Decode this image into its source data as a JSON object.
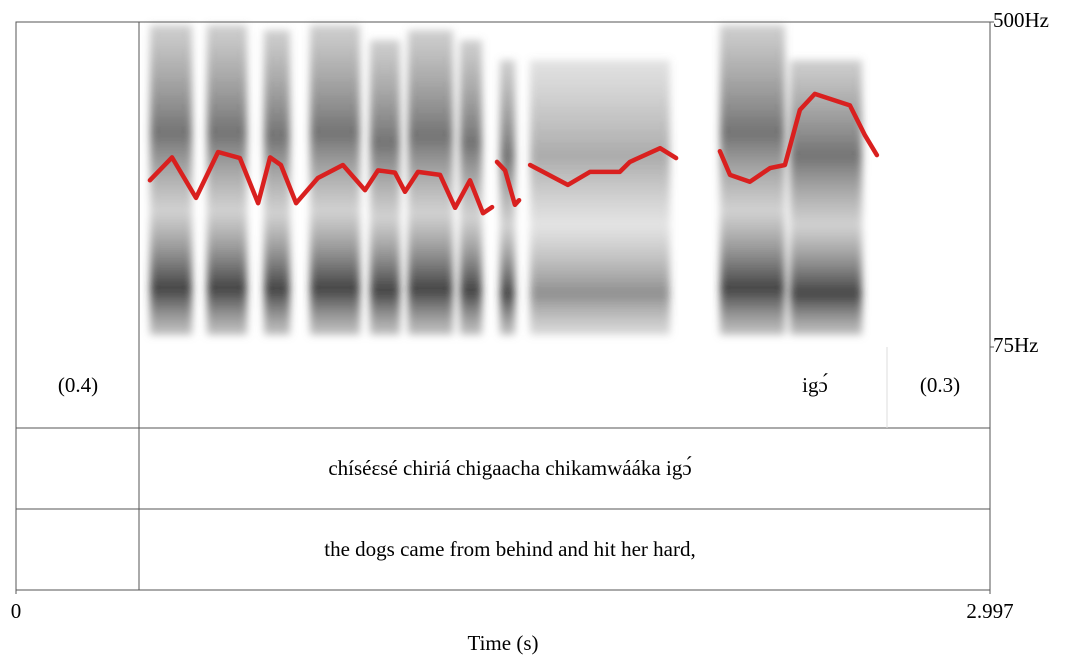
{
  "chart_data": {
    "type": "line",
    "x_label": "Time (s)",
    "color": "#d9201f",
    "xlim": [
      0,
      2.997
    ],
    "xticks": [
      0,
      2.997
    ],
    "ylim": [
      75,
      500
    ],
    "yticks": [
      {
        "value": 500,
        "label": "500Hz"
      },
      {
        "value": 75,
        "label": "75Hz"
      }
    ],
    "x": [
      0.412,
      0.48,
      0.554,
      0.622,
      0.689,
      0.745,
      0.782,
      0.815,
      0.862,
      0.929,
      1.006,
      1.074,
      1.114,
      1.166,
      1.197,
      1.237,
      1.305,
      1.351,
      1.397,
      1.437,
      1.465,
      1.472,
      1.48,
      1.505,
      1.535,
      1.548,
      1.565,
      1.582,
      1.698,
      1.766,
      1.858,
      1.889,
      1.982,
      2.031,
      2.1,
      2.166,
      2.197,
      2.258,
      2.32,
      2.366,
      2.412,
      2.458,
      2.566,
      2.612,
      2.649
    ],
    "values": [
      293,
      323,
      270,
      330,
      322,
      263,
      323,
      313,
      263,
      296,
      313,
      280,
      306,
      303,
      278,
      304,
      300,
      257,
      293,
      250,
      258,
      null,
      317,
      306,
      261,
      267,
      null,
      313,
      287,
      304,
      304,
      317,
      335,
      322,
      null,
      331,
      300,
      291,
      309,
      313,
      385,
      406,
      391,
      352,
      326
    ],
    "tiers": [
      [
        "(0.4)",
        "igɔ́",
        "(0.3)"
      ],
      [
        "chíséɛsé chiriá chigaacha chikamwááka igɔ́"
      ],
      [
        "the dogs came from behind and hit her hard,"
      ]
    ]
  }
}
